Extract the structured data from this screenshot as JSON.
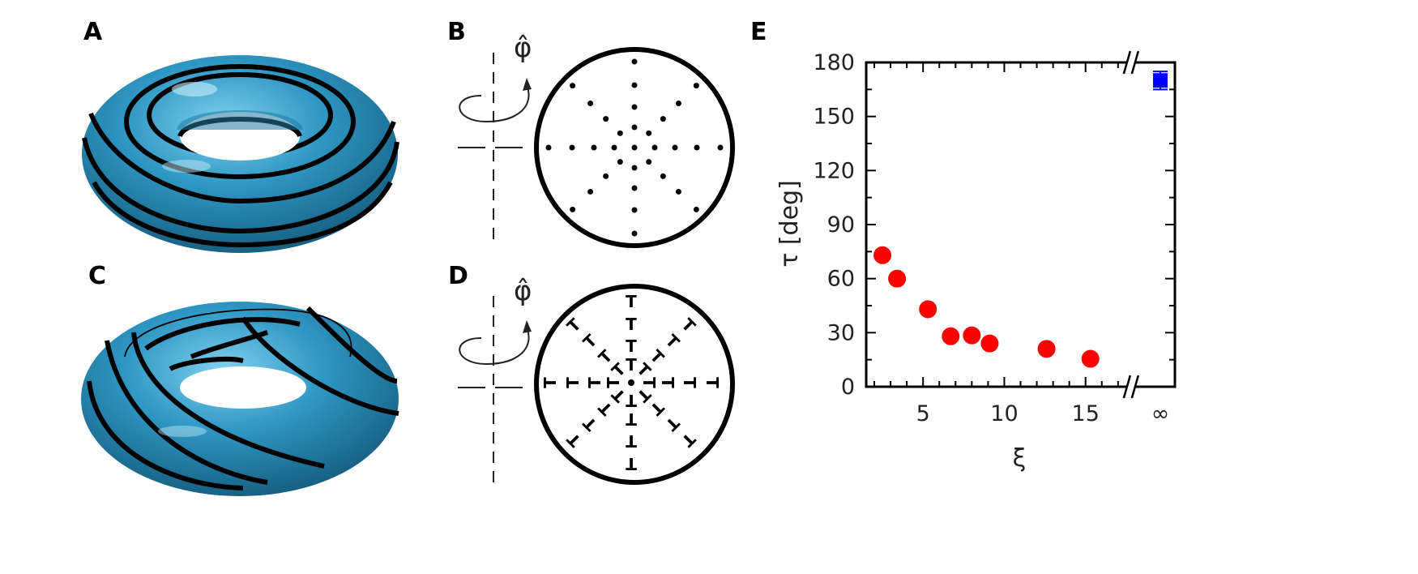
{
  "panels": {
    "a": "A",
    "b": "B",
    "c": "C",
    "d": "D",
    "e": "E"
  },
  "phi_symbol": "φ̂",
  "defect_symbol": "T",
  "colors": {
    "torus": "#2e97c4",
    "stripe": "#000000",
    "red_points": "#ff0000",
    "blue_point": "#0000ff"
  },
  "chart_data": {
    "type": "scatter",
    "xlabel": "ξ",
    "ylabel": "τ [deg]",
    "xlim": [
      1.5,
      20.5
    ],
    "ylim": [
      0,
      180
    ],
    "x_ticks": [
      "5",
      "10",
      "15",
      "∞"
    ],
    "y_ticks": [
      "0",
      "30",
      "60",
      "90",
      "120",
      "150",
      "180"
    ],
    "axis_break": true,
    "series": [
      {
        "color": "#ff0000",
        "marker": "circle",
        "x": [
          2.5,
          3.4,
          5.3,
          6.7,
          8.0,
          9.1,
          12.6,
          15.3
        ],
        "y": [
          73,
          60,
          43,
          28,
          28.5,
          24,
          21,
          15.5
        ]
      },
      {
        "color": "#0000ff",
        "marker": "square",
        "x": [
          "∞"
        ],
        "y": [
          170
        ],
        "error": [
          5
        ]
      }
    ]
  }
}
